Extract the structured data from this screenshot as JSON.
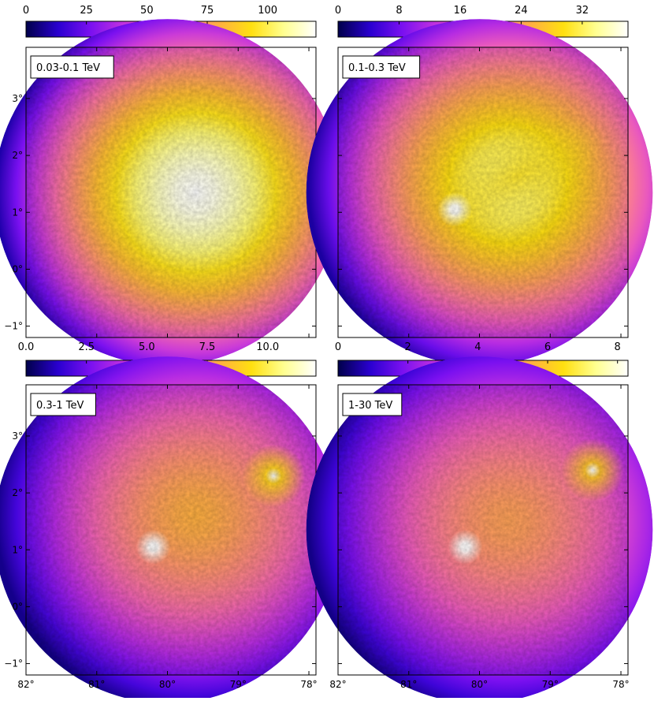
{
  "colormap": [
    "#00004a",
    "#2a00d0",
    "#7a10f0",
    "#c030e0",
    "#f05fb8",
    "#ff8a80",
    "#ffb040",
    "#ffe010",
    "#ffff90",
    "#ffffff"
  ],
  "chart_data": [
    {
      "type": "heatmap",
      "label": "0.03-0.1 TeV",
      "colorbar": {
        "min": 0,
        "max": 120,
        "ticks": [
          "0",
          "25",
          "50",
          "75",
          "100"
        ],
        "tick_values": [
          0,
          25,
          50,
          75,
          100
        ]
      },
      "xlim": [
        82,
        77.9
      ],
      "ylim": [
        -1.2,
        3.9
      ],
      "xticks": [],
      "xtick_values": [],
      "yticks": [
        "3°",
        "2°",
        "1°",
        "0°",
        "−1°"
      ],
      "ytick_values": [
        3,
        2,
        1,
        0,
        -1
      ],
      "field": {
        "center": [
          80.0,
          1.35
        ],
        "radius": 2.45
      },
      "emission": {
        "peak_intensity": 120,
        "peak_position": [
          79.6,
          1.35
        ]
      },
      "hotspots": [],
      "ridge": null
    },
    {
      "type": "heatmap",
      "label": "0.1-0.3 TeV",
      "colorbar": {
        "min": 0,
        "max": 38,
        "ticks": [
          "0",
          "8",
          "16",
          "24",
          "32"
        ],
        "tick_values": [
          0,
          8,
          16,
          24,
          32
        ]
      },
      "xlim": [
        82,
        77.9
      ],
      "ylim": [
        -1.2,
        3.9
      ],
      "xticks": [],
      "xtick_values": [],
      "yticks": [],
      "ytick_values": [],
      "field": {
        "center": [
          80.0,
          1.35
        ],
        "radius": 2.45
      },
      "emission": {
        "peak_intensity": 34,
        "peak_position": [
          79.6,
          1.5
        ]
      },
      "hotspots": [
        {
          "position": [
            80.35,
            1.05
          ],
          "intensity": 38
        }
      ],
      "ridge": {
        "from": [
          80.3,
          1.1
        ],
        "to": [
          78.6,
          2.2
        ],
        "intensity": 30
      }
    },
    {
      "type": "heatmap",
      "label": "0.3-1 TeV",
      "colorbar": {
        "min": 0,
        "max": 12,
        "ticks": [
          "0.0",
          "2.5",
          "5.0",
          "7.5",
          "10.0"
        ],
        "tick_values": [
          0,
          2.5,
          5,
          7.5,
          10
        ]
      },
      "xlim": [
        82,
        77.9
      ],
      "ylim": [
        -1.2,
        3.9
      ],
      "xticks": [
        "82°",
        "81°",
        "80°",
        "79°",
        "78°"
      ],
      "xtick_values": [
        82,
        81,
        80,
        79,
        78
      ],
      "yticks": [
        "3°",
        "2°",
        "1°",
        "0°",
        "−1°"
      ],
      "ytick_values": [
        3,
        2,
        1,
        0,
        -1
      ],
      "field": {
        "center": [
          80.0,
          1.35
        ],
        "radius": 2.45
      },
      "emission": {
        "peak_intensity": 8,
        "peak_position": [
          79.6,
          1.6
        ]
      },
      "hotspots": [
        {
          "position": [
            80.2,
            1.05
          ],
          "intensity": 12
        },
        {
          "position": [
            78.5,
            2.3
          ],
          "intensity": 9
        }
      ],
      "ridge": null
    },
    {
      "type": "heatmap",
      "label": "1-30 TeV",
      "colorbar": {
        "min": 0,
        "max": 8.3,
        "ticks": [
          "0",
          "2",
          "4",
          "6",
          "8"
        ],
        "tick_values": [
          0,
          2,
          4,
          6,
          8
        ]
      },
      "xlim": [
        82,
        77.9
      ],
      "ylim": [
        -1.2,
        3.9
      ],
      "xticks": [
        "82°",
        "81°",
        "80°",
        "79°",
        "78°"
      ],
      "xtick_values": [
        82,
        81,
        80,
        79,
        78
      ],
      "yticks": [],
      "ytick_values": [],
      "field": {
        "center": [
          80.0,
          1.35
        ],
        "radius": 2.45
      },
      "emission": {
        "peak_intensity": 5.2,
        "peak_position": [
          79.6,
          1.5
        ]
      },
      "hotspots": [
        {
          "position": [
            80.2,
            1.05
          ],
          "intensity": 8.3
        },
        {
          "position": [
            78.4,
            2.4
          ],
          "intensity": 6
        }
      ],
      "ridge": null
    }
  ]
}
